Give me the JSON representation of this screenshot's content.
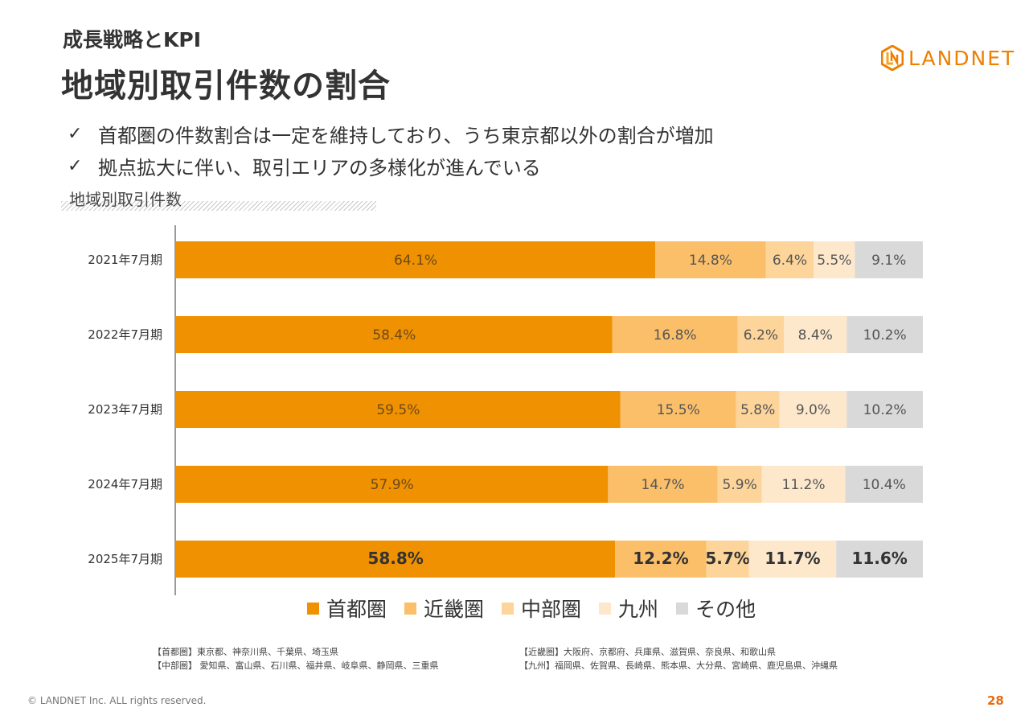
{
  "header": {
    "subtitle": "成長戦略とKPI",
    "title": "地域別取引件数の割合",
    "logo_text": "LANDNET"
  },
  "bullets": [
    "首都圏の件数割合は一定を維持しており、うち東京都以外の割合が増加",
    "拠点拡大に伴い、取引エリアの多様化が進んでいる"
  ],
  "check_glyph": "✓",
  "chart_label": "地域別取引件数",
  "chart_data": {
    "type": "bar",
    "orientation": "horizontal",
    "stacked": true,
    "normalized": true,
    "categories": [
      "2021年7月期",
      "2022年7月期",
      "2023年7月期",
      "2024年7月期",
      "2025年7月期"
    ],
    "series": [
      {
        "name": "首都圏",
        "color": "#ef9100",
        "values": [
          64.1,
          58.4,
          59.5,
          57.9,
          58.8
        ]
      },
      {
        "name": "近畿圏",
        "color": "#fbbf6a",
        "values": [
          14.8,
          16.8,
          15.5,
          14.7,
          12.2
        ]
      },
      {
        "name": "中部圏",
        "color": "#fdd49a",
        "values": [
          6.4,
          6.2,
          5.8,
          5.9,
          5.7
        ]
      },
      {
        "name": "九州",
        "color": "#fde8cc",
        "values": [
          5.5,
          8.4,
          9.0,
          11.2,
          11.7
        ]
      },
      {
        "name": "その他",
        "color": "#d9d9d9",
        "values": [
          9.1,
          10.2,
          10.2,
          10.4,
          11.6
        ]
      }
    ],
    "value_labels": [
      [
        "64.1%",
        "14.8%",
        "6.4%",
        "5.5%",
        "9.1%"
      ],
      [
        "58.4%",
        "16.8%",
        "6.2%",
        "8.4%",
        "10.2%"
      ],
      [
        "59.5%",
        "15.5%",
        "5.8%",
        "9.0%",
        "10.2%"
      ],
      [
        "57.9%",
        "14.7%",
        "5.9%",
        "11.2%",
        "10.4%"
      ],
      [
        "58.8%",
        "12.2%",
        "5.7%",
        "11.7%",
        "11.6%"
      ]
    ],
    "highlighted_category": "2025年7月期",
    "legend_position": "bottom"
  },
  "notes": {
    "left": [
      "【首都圏】東京都、神奈川県、千葉県、埼玉県",
      "【中部圏】 愛知県、富山県、石川県、福井県、岐阜県、静岡県、三重県"
    ],
    "right": [
      "【近畿圏】大阪府、京都府、兵庫県、滋賀県、奈良県、和歌山県",
      "【九州】福岡県、佐賀県、長崎県、熊本県、大分県、宮崎県、鹿児島県、沖縄県"
    ]
  },
  "footer": "© LANDNET Inc. ALL rights reserved.",
  "page_number": "28"
}
